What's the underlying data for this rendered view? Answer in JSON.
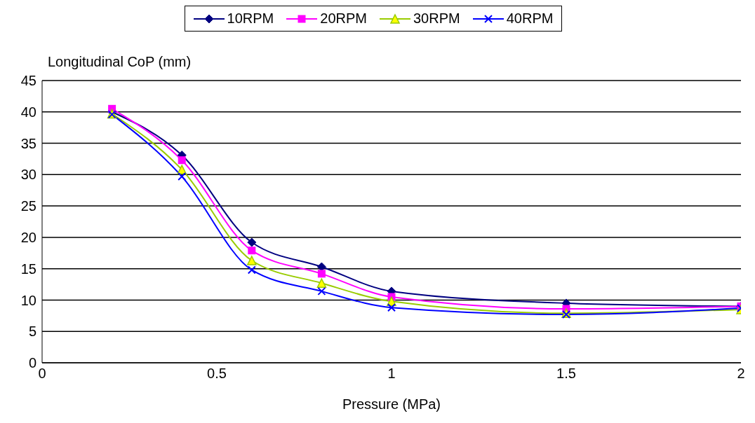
{
  "chart_data": {
    "type": "line",
    "xlabel": "Pressure (MPa)",
    "ylabel": "Longitudinal CoP (mm)",
    "x": [
      0.2,
      0.4,
      0.6,
      0.8,
      1,
      1.5,
      2
    ],
    "series": [
      {
        "name": "10RPM",
        "color": "#000080",
        "marker": "diamond",
        "values": [
          40,
          33.1,
          19.2,
          15.3,
          11.4,
          9.5,
          9
        ]
      },
      {
        "name": "20RPM",
        "color": "#ff00ff",
        "marker": "square",
        "values": [
          40.5,
          32.3,
          17.9,
          14.2,
          10.5,
          8.6,
          9
        ]
      },
      {
        "name": "30RPM",
        "color": "#99cc00",
        "marker": "triangle",
        "values": [
          39.7,
          30.8,
          16.3,
          12.7,
          9.8,
          7.9,
          8.5
        ]
      },
      {
        "name": "40RPM",
        "color": "#0000ff",
        "marker": "cross",
        "values": [
          39.6,
          29.7,
          14.8,
          11.4,
          8.8,
          7.7,
          8.7
        ]
      }
    ],
    "xlim": [
      0,
      2
    ],
    "xticks": [
      0,
      0.5,
      1,
      1.5,
      2
    ],
    "ylim": [
      0,
      45
    ],
    "yticks": [
      0,
      5,
      10,
      15,
      20,
      25,
      30,
      35,
      40,
      45
    ],
    "grid": "y",
    "legend": "top",
    "line_style": "solid"
  }
}
